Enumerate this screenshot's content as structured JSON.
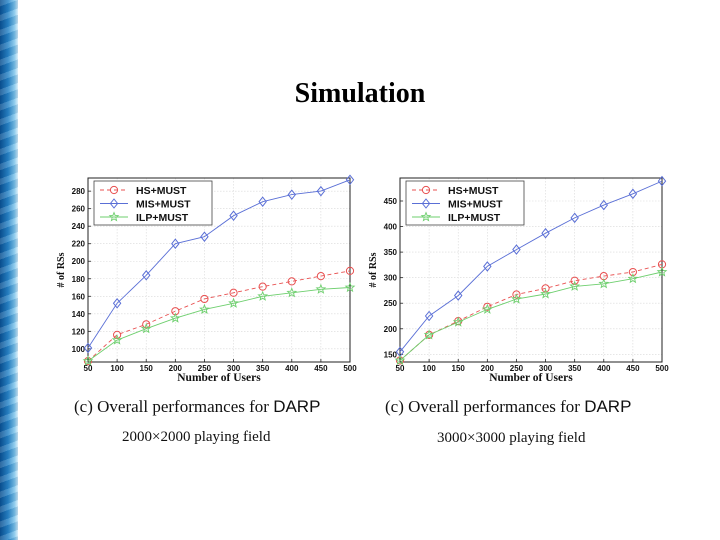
{
  "slide": {
    "title": "Simulation"
  },
  "chart_data": [
    {
      "type": "line",
      "xlabel": "Number of Users",
      "ylabel": "# of RSs",
      "x": [
        50,
        100,
        150,
        200,
        250,
        300,
        350,
        400,
        450,
        500
      ],
      "xlim": [
        50,
        500
      ],
      "ylim": [
        85,
        295
      ],
      "yticks": [
        100,
        120,
        140,
        160,
        180,
        200,
        220,
        240,
        260,
        280
      ],
      "grid": true,
      "legend": "top-left",
      "series": [
        {
          "name": "HS+MUST",
          "marker": "circle",
          "line": "dashed",
          "color": "#e85050",
          "values": [
            86,
            116,
            128,
            143,
            157,
            164,
            171,
            177,
            183,
            189
          ]
        },
        {
          "name": "MIS+MUST",
          "marker": "diamond",
          "line": "solid",
          "color": "#5a6fd6",
          "values": [
            101,
            152,
            184,
            220,
            228,
            252,
            268,
            276,
            280,
            293
          ]
        },
        {
          "name": "ILP+MUST",
          "marker": "star",
          "line": "solid",
          "color": "#6ecf6e",
          "values": [
            86,
            110,
            123,
            135,
            145,
            152,
            160,
            164,
            168,
            170
          ]
        }
      ],
      "caption": {
        "label": "(c)",
        "text": "Overall performances for",
        "emph": "DARP",
        "sub": "2000×2000 playing field"
      }
    },
    {
      "type": "line",
      "xlabel": "Number of Users",
      "ylabel": "# of RSs",
      "x": [
        50,
        100,
        150,
        200,
        250,
        300,
        350,
        400,
        450,
        500
      ],
      "xlim": [
        50,
        500
      ],
      "ylim": [
        135,
        495
      ],
      "yticks": [
        150,
        200,
        250,
        300,
        350,
        400,
        450
      ],
      "grid": true,
      "legend": "top-left",
      "series": [
        {
          "name": "HS+MUST",
          "marker": "circle",
          "line": "dashed",
          "color": "#e85050",
          "values": [
            138,
            188,
            215,
            243,
            267,
            279,
            294,
            303,
            311,
            326
          ]
        },
        {
          "name": "MIS+MUST",
          "marker": "diamond",
          "line": "solid",
          "color": "#5a6fd6",
          "values": [
            155,
            225,
            265,
            322,
            355,
            387,
            417,
            442,
            464,
            489
          ]
        },
        {
          "name": "ILP+MUST",
          "marker": "star",
          "line": "solid",
          "color": "#6ecf6e",
          "values": [
            138,
            188,
            213,
            238,
            258,
            268,
            283,
            288,
            298,
            311
          ]
        }
      ],
      "caption": {
        "label": "(c)",
        "text": "Overall performances for",
        "emph": "DARP",
        "sub": "3000×3000 playing field"
      }
    }
  ]
}
